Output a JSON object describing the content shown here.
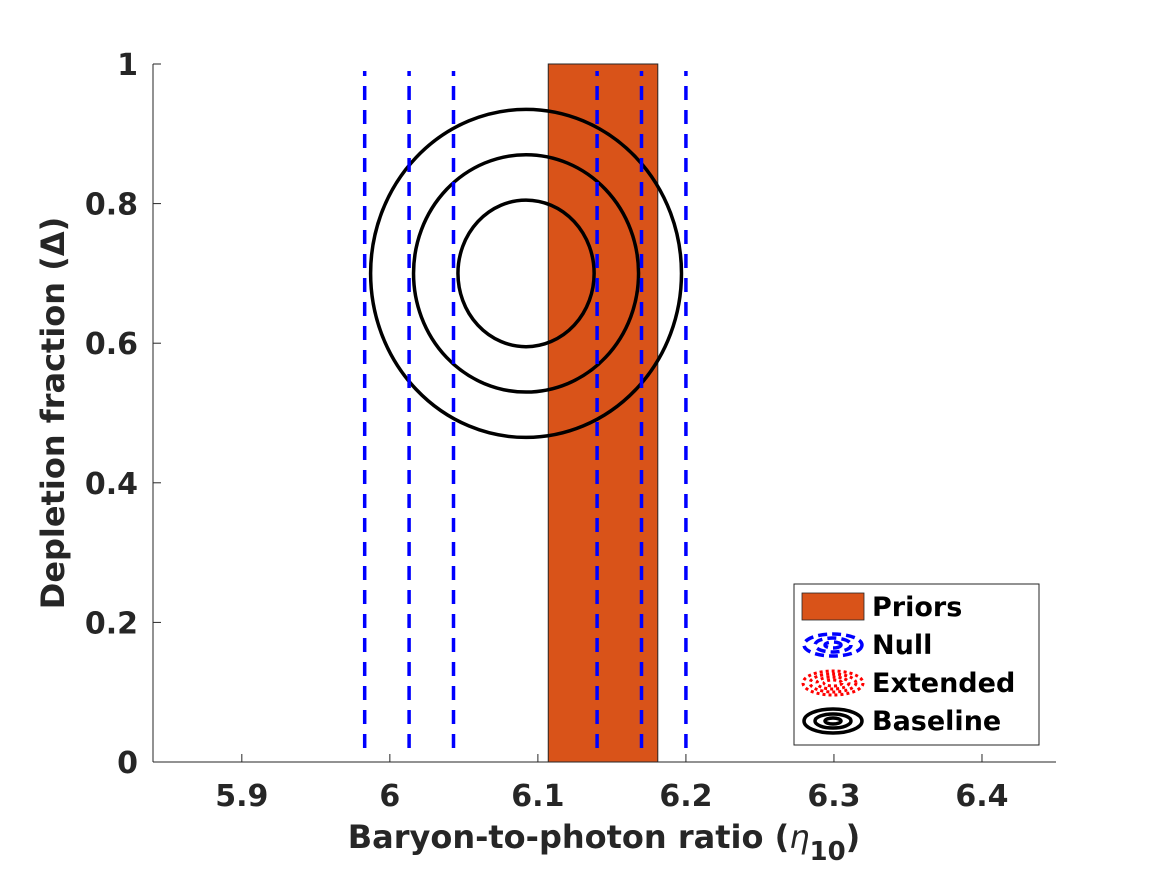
{
  "chart_data": {
    "type": "contour",
    "xlabel": "Baryon-to-photon ratio (",
    "xlabel_symbol": "η",
    "xlabel_subscript": "10",
    "xlabel_close": ")",
    "ylabel": "Depletion fraction (Δ)",
    "xlim": [
      5.84,
      6.45
    ],
    "ylim": [
      0,
      1
    ],
    "x_ticks": [
      5.9,
      6.0,
      6.1,
      6.2,
      6.3,
      6.4
    ],
    "x_tick_labels": [
      "5.9",
      "6",
      "6.1",
      "6.2",
      "6.3",
      "6.4"
    ],
    "y_ticks": [
      0,
      0.2,
      0.4,
      0.6,
      0.8,
      1.0
    ],
    "y_tick_labels": [
      "0",
      "0.2",
      "0.4",
      "0.6",
      "0.8",
      "1"
    ],
    "grid": false,
    "legend_position": "bottom-right",
    "legend": [
      "Priors",
      "Null",
      "Extended",
      "Baseline"
    ],
    "priors": {
      "name": "Priors",
      "x_range": [
        6.107,
        6.181
      ],
      "y_range": [
        0,
        1
      ],
      "color": "#d95319"
    },
    "null_lines": {
      "name": "Null",
      "color": "#0000ff",
      "x": [
        5.983,
        6.013,
        6.043,
        6.14,
        6.17,
        6.2
      ],
      "y_range": [
        0.02,
        0.99
      ]
    },
    "extended": {
      "name": "Extended",
      "color": "#ff0000"
    },
    "baseline": {
      "name": "Baseline",
      "color": "#000000",
      "contours": [
        {
          "cx": 6.092,
          "cy": 0.7,
          "rx": 0.046,
          "ry": 0.105
        },
        {
          "cx": 6.092,
          "cy": 0.7,
          "rx": 0.076,
          "ry": 0.17
        },
        {
          "cx": 6.092,
          "cy": 0.7,
          "rx": 0.105,
          "ry": 0.235
        }
      ]
    }
  }
}
